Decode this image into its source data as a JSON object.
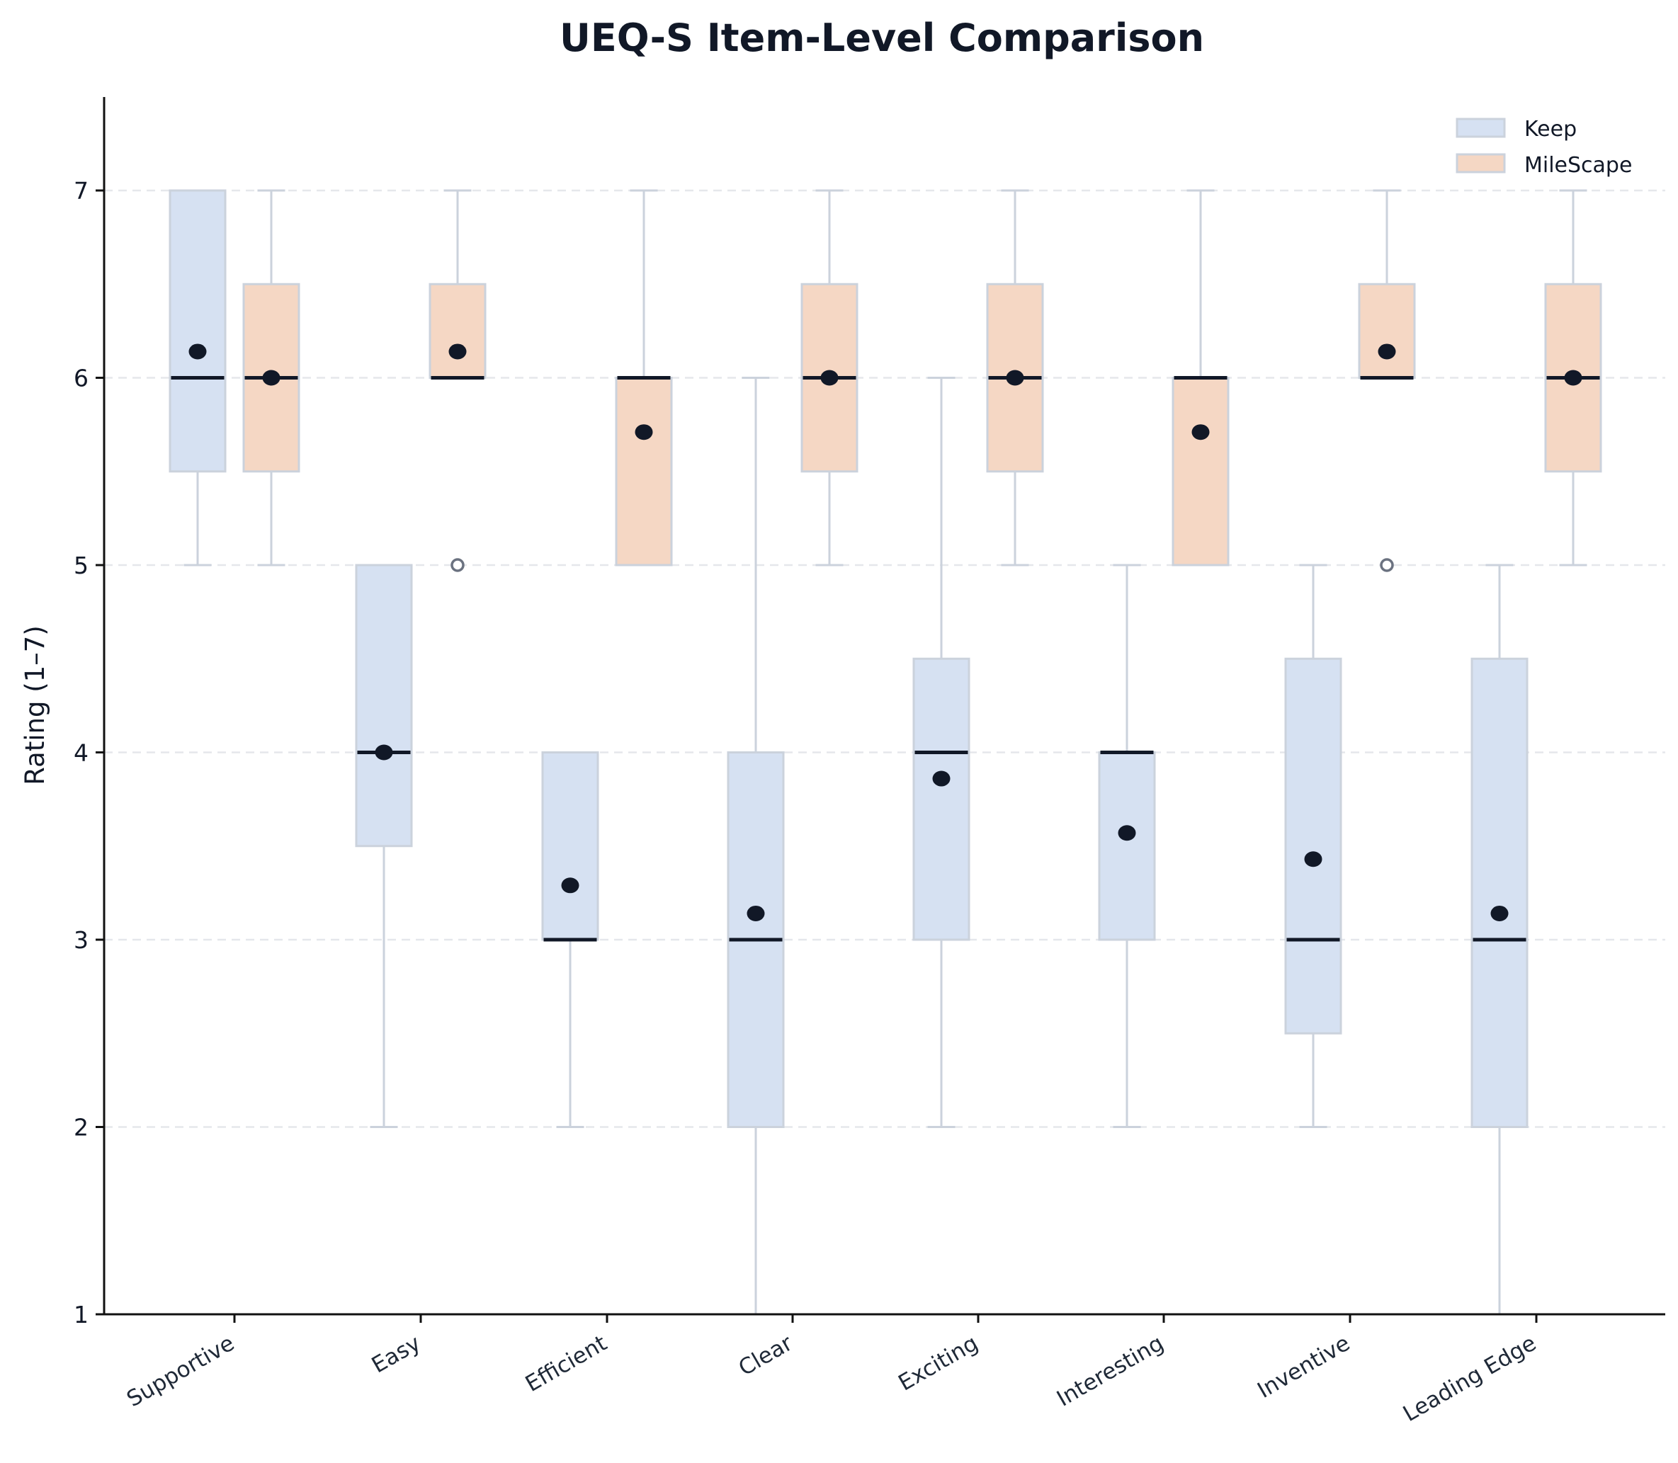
{
  "chart_data": {
    "type": "box",
    "title": "UEQ-S Item-Level Comparison",
    "xlabel": "",
    "ylabel": "Rating (1–7)",
    "ylim": [
      1,
      7.5
    ],
    "yticks": [
      1,
      2,
      3,
      4,
      5,
      6,
      7
    ],
    "grid": {
      "axis": "y",
      "style": "dashed",
      "color": "#e5e7eb"
    },
    "legend": {
      "position": "upper right",
      "entries": [
        "Keep",
        "MileScape"
      ]
    },
    "categories": [
      "Supportive",
      "Easy",
      "Efficient",
      "Clear",
      "Exciting",
      "Interesting",
      "Inventive",
      "Leading Edge"
    ],
    "series": [
      {
        "name": "Keep",
        "color": "#d6e1f2",
        "boxes": [
          {
            "whisker_low": 5,
            "q1": 5.5,
            "median": 6,
            "q3": 7,
            "whisker_high": 7,
            "mean": 6.14,
            "outliers": []
          },
          {
            "whisker_low": 2,
            "q1": 3.5,
            "median": 4,
            "q3": 5,
            "whisker_high": 5,
            "mean": 4.0,
            "outliers": []
          },
          {
            "whisker_low": 2,
            "q1": 3,
            "median": 3,
            "q3": 4,
            "whisker_high": 4,
            "mean": 3.29,
            "outliers": []
          },
          {
            "whisker_low": 1,
            "q1": 2,
            "median": 3,
            "q3": 4,
            "whisker_high": 6,
            "mean": 3.14,
            "outliers": []
          },
          {
            "whisker_low": 2,
            "q1": 3,
            "median": 4,
            "q3": 4.5,
            "whisker_high": 6,
            "mean": 3.86,
            "outliers": []
          },
          {
            "whisker_low": 2,
            "q1": 3,
            "median": 4,
            "q3": 4,
            "whisker_high": 5,
            "mean": 3.57,
            "outliers": []
          },
          {
            "whisker_low": 2,
            "q1": 2.5,
            "median": 3,
            "q3": 4.5,
            "whisker_high": 5,
            "mean": 3.43,
            "outliers": []
          },
          {
            "whisker_low": 1,
            "q1": 2,
            "median": 3,
            "q3": 4.5,
            "whisker_high": 5,
            "mean": 3.14,
            "outliers": []
          }
        ]
      },
      {
        "name": "MileScape",
        "color": "#f5d7c4",
        "boxes": [
          {
            "whisker_low": 5,
            "q1": 5.5,
            "median": 6,
            "q3": 6.5,
            "whisker_high": 7,
            "mean": 6.0,
            "outliers": []
          },
          {
            "whisker_low": 6,
            "q1": 6,
            "median": 6,
            "q3": 6.5,
            "whisker_high": 7,
            "mean": 6.14,
            "outliers": [
              5
            ]
          },
          {
            "whisker_low": 5,
            "q1": 5,
            "median": 6,
            "q3": 6,
            "whisker_high": 7,
            "mean": 5.71,
            "outliers": []
          },
          {
            "whisker_low": 5,
            "q1": 5.5,
            "median": 6,
            "q3": 6.5,
            "whisker_high": 7,
            "mean": 6.0,
            "outliers": []
          },
          {
            "whisker_low": 5,
            "q1": 5.5,
            "median": 6,
            "q3": 6.5,
            "whisker_high": 7,
            "mean": 6.0,
            "outliers": []
          },
          {
            "whisker_low": 5,
            "q1": 5,
            "median": 6,
            "q3": 6,
            "whisker_high": 7,
            "mean": 5.71,
            "outliers": []
          },
          {
            "whisker_low": 6,
            "q1": 6,
            "median": 6,
            "q3": 6.5,
            "whisker_high": 7,
            "mean": 6.14,
            "outliers": [
              5
            ]
          },
          {
            "whisker_low": 5,
            "q1": 5.5,
            "median": 6,
            "q3": 6.5,
            "whisker_high": 7,
            "mean": 6.0,
            "outliers": []
          }
        ]
      }
    ]
  },
  "style": {
    "edge_color": "#cbd2dc",
    "median_color": "#111827",
    "mean_color": "#111827",
    "outlier_color": "#6b7280",
    "grid_color": "#e5e7eb",
    "axis_color": "#111111"
  }
}
